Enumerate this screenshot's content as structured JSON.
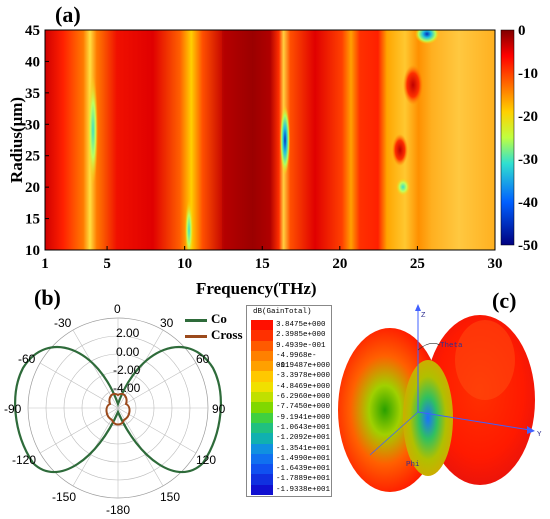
{
  "chart_data": [
    {
      "panel": "(a)",
      "type": "heatmap",
      "xlabel": "Frequency(THz)",
      "ylabel": "Radius(μm)",
      "xlim": [
        1,
        30
      ],
      "ylim": [
        10,
        45
      ],
      "xticks": [
        "1",
        "5",
        "10",
        "15",
        "20",
        "25",
        "30"
      ],
      "yticks": [
        "10",
        "15",
        "20",
        "25",
        "30",
        "35",
        "40",
        "45"
      ],
      "colorbar": {
        "range": [
          -50,
          0
        ],
        "ticks": [
          "0",
          "-10",
          "-20",
          "-30",
          "-40",
          "-50"
        ]
      },
      "colors": {
        "high": "#800000",
        "mid_high": "#e00000",
        "mid": "#ffd000",
        "mid_low": "#30e0c0",
        "low": "#000080"
      }
    },
    {
      "panel": "(b)",
      "type": "polar",
      "angle_labels": [
        "0",
        "30",
        "60",
        "90",
        "120",
        "150",
        "-180",
        "-150",
        "-120",
        "-90",
        "-60",
        "-30"
      ],
      "radial_labels": [
        "2.00",
        "0.00",
        "-2.00",
        "-4.00"
      ],
      "series": [
        {
          "name": "Co",
          "color": "#2e6b3a"
        },
        {
          "name": "Cross",
          "color": "#9b4a1d"
        }
      ]
    },
    {
      "panel": "(c)",
      "type": "3d-radiation-pattern",
      "legend_title": "dB(GainTotal)",
      "legend_values": [
        "3.8475e+000",
        "2.3985e+000",
        "9.4939e-001",
        "-4.9968e-001",
        "-1.9487e+000",
        "-3.3978e+000",
        "-4.8469e+000",
        "-6.2960e+000",
        "-7.7450e+000",
        "-9.1941e+000",
        "-1.0643e+001",
        "-1.2092e+001",
        "-1.3541e+001",
        "-1.4990e+001",
        "-1.6439e+001",
        "-1.7889e+001",
        "-1.9338e+001"
      ],
      "axis_labels": {
        "z": "Z",
        "y": "Y",
        "theta": "Theta",
        "phi": "Phi"
      }
    }
  ]
}
